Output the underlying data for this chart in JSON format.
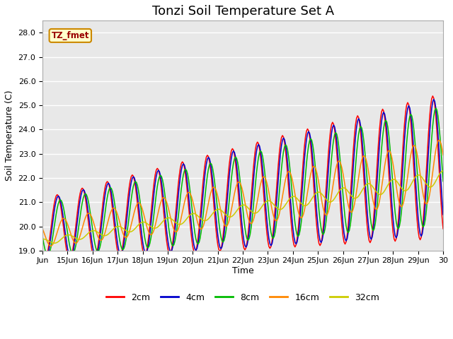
{
  "title": "Tonzi Soil Temperature Set A",
  "xlabel": "Time",
  "ylabel": "Soil Temperature (C)",
  "ylim": [
    19.0,
    28.5
  ],
  "xlim": [
    0,
    384
  ],
  "yticks": [
    19.0,
    20.0,
    21.0,
    22.0,
    23.0,
    24.0,
    25.0,
    26.0,
    27.0,
    28.0
  ],
  "xtick_labels": [
    "Jun",
    "15Jun",
    "16Jun",
    "17Jun",
    "18Jun",
    "19Jun",
    "20Jun",
    "21Jun",
    "22Jun",
    "23Jun",
    "24Jun",
    "25Jun",
    "26Jun",
    "27Jun",
    "28Jun",
    "29Jun",
    "30"
  ],
  "xtick_positions": [
    0,
    24,
    48,
    72,
    96,
    120,
    144,
    168,
    192,
    216,
    240,
    264,
    288,
    312,
    336,
    360,
    384
  ],
  "colors": {
    "2cm": "#ff0000",
    "4cm": "#0000cc",
    "8cm": "#00bb00",
    "16cm": "#ff8800",
    "32cm": "#cccc00"
  },
  "legend_label": "TZ_fmet",
  "plot_bg": "#e8e8e8",
  "fig_bg": "#ffffff",
  "grid_color": "#ffffff",
  "title_fontsize": 13,
  "label_fontsize": 9,
  "tick_fontsize": 8
}
